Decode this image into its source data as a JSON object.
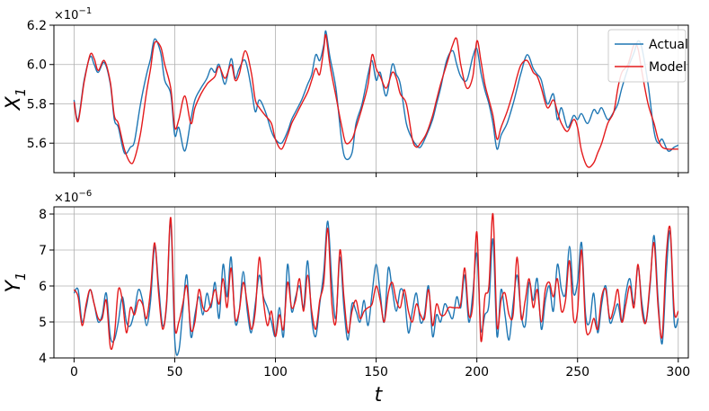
{
  "chart_data": [
    {
      "type": "line",
      "xlabel": "",
      "ylabel": "X",
      "ylabel_sub": "1",
      "y_multiplier": "×10",
      "y_multiplier_exp": "−1",
      "xlim": [
        -10,
        305
      ],
      "ylim": [
        5.45,
        6.2
      ],
      "yticks": [
        "5.6",
        "5.8",
        "6.0",
        "6.2"
      ],
      "ytick_values": [
        5.6,
        5.8,
        6.0,
        6.2
      ],
      "xtick_values": [
        0,
        50,
        100,
        150,
        200,
        250,
        300
      ],
      "grid": true,
      "legend": {
        "position": "top-right",
        "entries": [
          "Actual",
          "Model"
        ]
      },
      "colors": {
        "Actual": "#1f77b4",
        "Model": "#e41a1c"
      },
      "x": [
        0,
        2,
        5,
        8,
        10,
        12,
        15,
        18,
        20,
        22,
        25,
        28,
        30,
        33,
        36,
        38,
        40,
        43,
        45,
        48,
        50,
        52,
        55,
        58,
        60,
        63,
        66,
        68,
        70,
        72,
        75,
        78,
        80,
        82,
        85,
        88,
        90,
        92,
        95,
        98,
        100,
        103,
        106,
        108,
        110,
        113,
        116,
        118,
        120,
        122,
        124,
        125,
        127,
        130,
        133,
        135,
        138,
        140,
        143,
        146,
        148,
        150,
        152,
        155,
        158,
        160,
        162,
        165,
        168,
        170,
        172,
        175,
        178,
        180,
        182,
        185,
        188,
        190,
        192,
        195,
        198,
        200,
        202,
        204,
        206,
        208,
        210,
        212,
        215,
        218,
        220,
        222,
        225,
        228,
        230,
        232,
        235,
        238,
        240,
        242,
        245,
        248,
        250,
        252,
        255,
        258,
        260,
        262,
        265,
        268,
        270,
        272,
        275,
        278,
        280,
        282,
        285,
        288,
        290,
        292,
        295,
        298,
        300
      ],
      "series": [
        {
          "name": "Actual",
          "values": [
            5.82,
            5.72,
            5.92,
            6.04,
            6.0,
            5.96,
            6.01,
            5.9,
            5.72,
            5.68,
            5.55,
            5.58,
            5.61,
            5.8,
            5.95,
            6.03,
            6.13,
            6.06,
            5.92,
            5.85,
            5.64,
            5.68,
            5.56,
            5.72,
            5.82,
            5.88,
            5.93,
            5.98,
            5.96,
            6.0,
            5.9,
            6.03,
            5.93,
            5.98,
            6.02,
            5.88,
            5.76,
            5.82,
            5.76,
            5.66,
            5.62,
            5.6,
            5.66,
            5.72,
            5.76,
            5.82,
            5.9,
            5.95,
            6.05,
            6.02,
            6.1,
            6.17,
            6.04,
            5.88,
            5.6,
            5.52,
            5.55,
            5.7,
            5.8,
            5.95,
            6.02,
            5.92,
            5.96,
            5.84,
            6.0,
            5.95,
            5.9,
            5.7,
            5.62,
            5.59,
            5.58,
            5.64,
            5.72,
            5.8,
            5.88,
            6.02,
            6.07,
            6.0,
            5.94,
            5.92,
            6.04,
            6.08,
            5.96,
            5.87,
            5.8,
            5.7,
            5.57,
            5.64,
            5.7,
            5.8,
            5.88,
            5.96,
            6.05,
            5.98,
            5.95,
            5.92,
            5.8,
            5.85,
            5.72,
            5.78,
            5.68,
            5.74,
            5.72,
            5.75,
            5.7,
            5.77,
            5.75,
            5.78,
            5.72,
            5.76,
            5.8,
            5.88,
            5.98,
            6.06,
            6.12,
            6.08,
            5.9,
            5.66,
            5.6,
            5.62,
            5.56,
            5.58,
            5.59
          ]
        },
        {
          "name": "Model",
          "values": [
            5.81,
            5.71,
            5.91,
            6.05,
            6.03,
            5.97,
            6.02,
            5.91,
            5.74,
            5.7,
            5.57,
            5.5,
            5.52,
            5.65,
            5.86,
            5.98,
            6.11,
            6.09,
            6.0,
            5.88,
            5.68,
            5.72,
            5.84,
            5.7,
            5.78,
            5.85,
            5.9,
            5.92,
            5.94,
            5.99,
            5.93,
            6.0,
            5.92,
            5.95,
            6.07,
            5.96,
            5.82,
            5.78,
            5.74,
            5.7,
            5.62,
            5.57,
            5.64,
            5.7,
            5.74,
            5.8,
            5.86,
            5.92,
            5.98,
            5.95,
            6.08,
            6.15,
            6.0,
            5.84,
            5.68,
            5.6,
            5.62,
            5.68,
            5.78,
            5.9,
            6.05,
            5.98,
            5.94,
            5.88,
            5.96,
            5.93,
            5.85,
            5.8,
            5.62,
            5.58,
            5.6,
            5.65,
            5.74,
            5.82,
            5.9,
            6.0,
            6.1,
            6.13,
            6.0,
            5.88,
            5.94,
            6.12,
            6.02,
            5.9,
            5.82,
            5.74,
            5.62,
            5.68,
            5.76,
            5.86,
            5.94,
            6.0,
            6.02,
            5.96,
            5.94,
            5.88,
            5.78,
            5.82,
            5.76,
            5.7,
            5.66,
            5.72,
            5.68,
            5.56,
            5.48,
            5.5,
            5.55,
            5.6,
            5.7,
            5.76,
            5.88,
            5.96,
            6.0,
            6.1,
            6.08,
            5.96,
            5.8,
            5.7,
            5.62,
            5.58,
            5.57,
            5.57,
            5.57
          ]
        }
      ]
    },
    {
      "type": "line",
      "xlabel": "t",
      "ylabel": "Y",
      "ylabel_sub": "1",
      "y_multiplier": "×10",
      "y_multiplier_exp": "−6",
      "xlim": [
        -10,
        305
      ],
      "ylim": [
        4.0,
        8.2
      ],
      "yticks": [
        "4",
        "5",
        "6",
        "7",
        "8"
      ],
      "ytick_values": [
        4,
        5,
        6,
        7,
        8
      ],
      "xticks": [
        "0",
        "50",
        "100",
        "150",
        "200",
        "250",
        "300"
      ],
      "xtick_values": [
        0,
        50,
        100,
        150,
        200,
        250,
        300
      ],
      "grid": true,
      "colors": {
        "Actual": "#1f77b4",
        "Model": "#e41a1c"
      },
      "x": [
        0,
        2,
        4,
        6,
        8,
        10,
        12,
        14,
        16,
        18,
        20,
        22,
        24,
        26,
        28,
        30,
        32,
        34,
        36,
        38,
        40,
        42,
        44,
        46,
        48,
        50,
        52,
        54,
        56,
        58,
        60,
        62,
        64,
        66,
        68,
        70,
        72,
        74,
        76,
        78,
        80,
        82,
        84,
        86,
        88,
        90,
        92,
        94,
        96,
        98,
        100,
        102,
        104,
        106,
        108,
        110,
        112,
        114,
        116,
        118,
        120,
        122,
        124,
        126,
        128,
        130,
        132,
        134,
        136,
        138,
        140,
        142,
        144,
        146,
        148,
        150,
        152,
        154,
        156,
        158,
        160,
        162,
        164,
        166,
        168,
        170,
        172,
        174,
        176,
        178,
        180,
        182,
        184,
        186,
        188,
        190,
        192,
        194,
        196,
        198,
        200,
        202,
        204,
        206,
        208,
        210,
        212,
        214,
        216,
        218,
        220,
        222,
        224,
        226,
        228,
        230,
        232,
        234,
        236,
        238,
        240,
        242,
        244,
        246,
        248,
        250,
        252,
        254,
        256,
        258,
        260,
        262,
        264,
        266,
        268,
        270,
        272,
        274,
        276,
        278,
        280,
        282,
        284,
        286,
        288,
        290,
        292,
        294,
        296,
        298,
        300
      ],
      "series": [
        {
          "name": "Actual",
          "values": [
            5.8,
            5.9,
            5.0,
            5.4,
            5.9,
            5.5,
            5.0,
            5.2,
            5.8,
            4.6,
            4.5,
            5.0,
            5.7,
            5.0,
            4.9,
            5.3,
            5.9,
            5.6,
            4.9,
            5.6,
            7.1,
            6.0,
            4.9,
            5.5,
            7.8,
            4.5,
            4.2,
            5.3,
            6.3,
            4.6,
            5.2,
            5.7,
            5.2,
            5.8,
            5.4,
            6.1,
            5.1,
            6.6,
            5.7,
            6.8,
            5.0,
            5.3,
            6.4,
            5.3,
            4.7,
            5.5,
            6.3,
            5.7,
            5.4,
            5.0,
            4.6,
            5.4,
            4.6,
            6.6,
            5.3,
            5.7,
            6.0,
            5.4,
            6.7,
            5.1,
            4.6,
            5.5,
            6.4,
            7.8,
            6.1,
            5.1,
            6.8,
            5.4,
            4.5,
            5.5,
            5.3,
            5.0,
            5.6,
            4.9,
            5.8,
            6.6,
            5.8,
            5.0,
            6.5,
            5.9,
            5.3,
            5.9,
            5.7,
            4.7,
            5.3,
            5.8,
            5.0,
            5.2,
            6.0,
            4.6,
            5.2,
            5.0,
            5.5,
            5.3,
            5.1,
            5.7,
            5.4,
            6.3,
            5.0,
            5.8,
            6.9,
            4.8,
            5.2,
            5.5,
            7.3,
            4.6,
            5.9,
            5.2,
            4.5,
            5.5,
            6.3,
            5.2,
            4.9,
            6.1,
            5.6,
            6.2,
            4.8,
            5.6,
            6.0,
            5.3,
            6.6,
            5.9,
            5.8,
            7.1,
            5.8,
            6.1,
            7.2,
            5.2,
            5.0,
            5.8,
            4.7,
            5.5,
            6.0,
            5.0,
            5.2,
            5.5,
            5.0,
            5.8,
            6.2,
            5.5,
            6.5,
            5.5,
            5.0,
            6.0,
            7.4,
            5.6,
            4.4,
            6.3,
            7.5,
            5.0,
            5.1
          ]
        },
        {
          "name": "Model",
          "values": [
            5.9,
            5.7,
            4.9,
            5.5,
            5.9,
            5.5,
            5.1,
            5.1,
            5.6,
            4.3,
            4.6,
            5.9,
            5.6,
            4.7,
            5.4,
            5.2,
            5.6,
            5.5,
            5.1,
            5.9,
            7.2,
            5.8,
            4.8,
            5.6,
            7.9,
            4.9,
            5.0,
            5.5,
            6.0,
            4.8,
            5.0,
            5.9,
            5.4,
            5.3,
            5.5,
            5.9,
            5.5,
            6.2,
            5.4,
            6.5,
            5.1,
            5.3,
            6.1,
            5.5,
            4.8,
            5.3,
            6.8,
            5.6,
            4.9,
            5.3,
            4.6,
            5.2,
            4.8,
            6.1,
            5.4,
            5.6,
            6.2,
            5.3,
            6.3,
            5.3,
            4.8,
            5.6,
            6.1,
            7.6,
            5.5,
            5.0,
            7.0,
            5.7,
            4.7,
            5.3,
            5.6,
            5.1,
            5.3,
            5.4,
            5.5,
            6.0,
            5.6,
            5.0,
            5.8,
            6.1,
            5.6,
            5.4,
            5.9,
            5.3,
            5.0,
            5.5,
            5.2,
            5.1,
            5.9,
            4.9,
            5.5,
            5.2,
            5.2,
            5.4,
            5.4,
            5.4,
            5.5,
            6.5,
            5.2,
            5.5,
            7.5,
            4.5,
            5.7,
            6.0,
            8.0,
            4.9,
            5.6,
            5.8,
            5.2,
            5.2,
            6.8,
            5.1,
            5.6,
            6.2,
            5.4,
            5.9,
            5.0,
            5.9,
            6.1,
            5.7,
            6.2,
            5.3,
            5.6,
            6.7,
            5.1,
            5.3,
            7.0,
            4.9,
            4.7,
            5.1,
            4.8,
            5.7,
            5.9,
            5.1,
            5.4,
            5.9,
            5.0,
            5.5,
            6.0,
            5.4,
            6.6,
            5.3,
            5.0,
            6.1,
            7.2,
            5.4,
            4.6,
            6.8,
            7.6,
            5.3,
            5.3
          ]
        }
      ]
    }
  ]
}
